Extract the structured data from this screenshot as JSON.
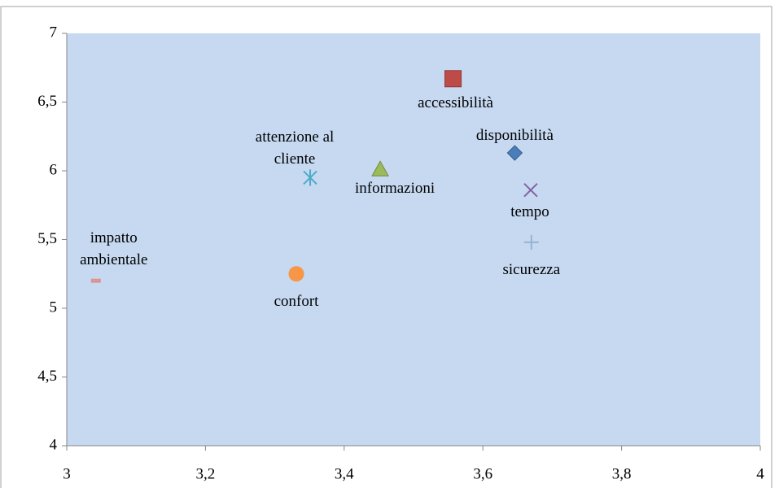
{
  "chart_data": {
    "type": "scatter",
    "xlim": [
      3,
      4
    ],
    "xticks": [
      3,
      {
        "value": 3.2,
        "label": "3,2"
      },
      {
        "value": 3.4,
        "label": "3,4"
      },
      {
        "value": 3.6,
        "label": "3,6"
      },
      {
        "value": 3.8,
        "label": "3,8"
      },
      4
    ],
    "ylim": [
      4,
      7
    ],
    "yticks": [
      4,
      {
        "value": 4.5,
        "label": "4,5"
      },
      5,
      {
        "value": 5.5,
        "label": "5,5"
      },
      6,
      {
        "value": 6.5,
        "label": "6,5"
      },
      7
    ],
    "background": "#c6d9f1",
    "series": [
      {
        "name": "accessibilità",
        "color": "#be4b48",
        "marker": "square",
        "x": [
          3.557
        ],
        "values": [
          6.67
        ]
      },
      {
        "name": "disponibilità",
        "color": "#4a7ebb",
        "marker": "diamond",
        "x": [
          3.646
        ],
        "values": [
          6.13
        ]
      },
      {
        "name": "attenzione al cliente",
        "color": "#4bacc6",
        "marker": "asterisk",
        "x": [
          3.351
        ],
        "values": [
          5.95
        ]
      },
      {
        "name": "informazioni",
        "color": "#9bbb59",
        "marker": "triangle",
        "x": [
          3.452
        ],
        "values": [
          6.01
        ]
      },
      {
        "name": "tempo",
        "color": "#8064a2",
        "marker": "x",
        "x": [
          3.669
        ],
        "values": [
          5.86
        ]
      },
      {
        "name": "sicurezza",
        "color": "#95b3d7",
        "marker": "plus",
        "x": [
          3.67
        ],
        "values": [
          5.48
        ]
      },
      {
        "name": "confort",
        "color": "#f79646",
        "marker": "circle",
        "x": [
          3.331
        ],
        "values": [
          5.25
        ]
      },
      {
        "name": "impatto ambientale",
        "color": "#d99694",
        "marker": "dash",
        "x": [
          3.042
        ],
        "values": [
          5.2
        ]
      }
    ]
  }
}
